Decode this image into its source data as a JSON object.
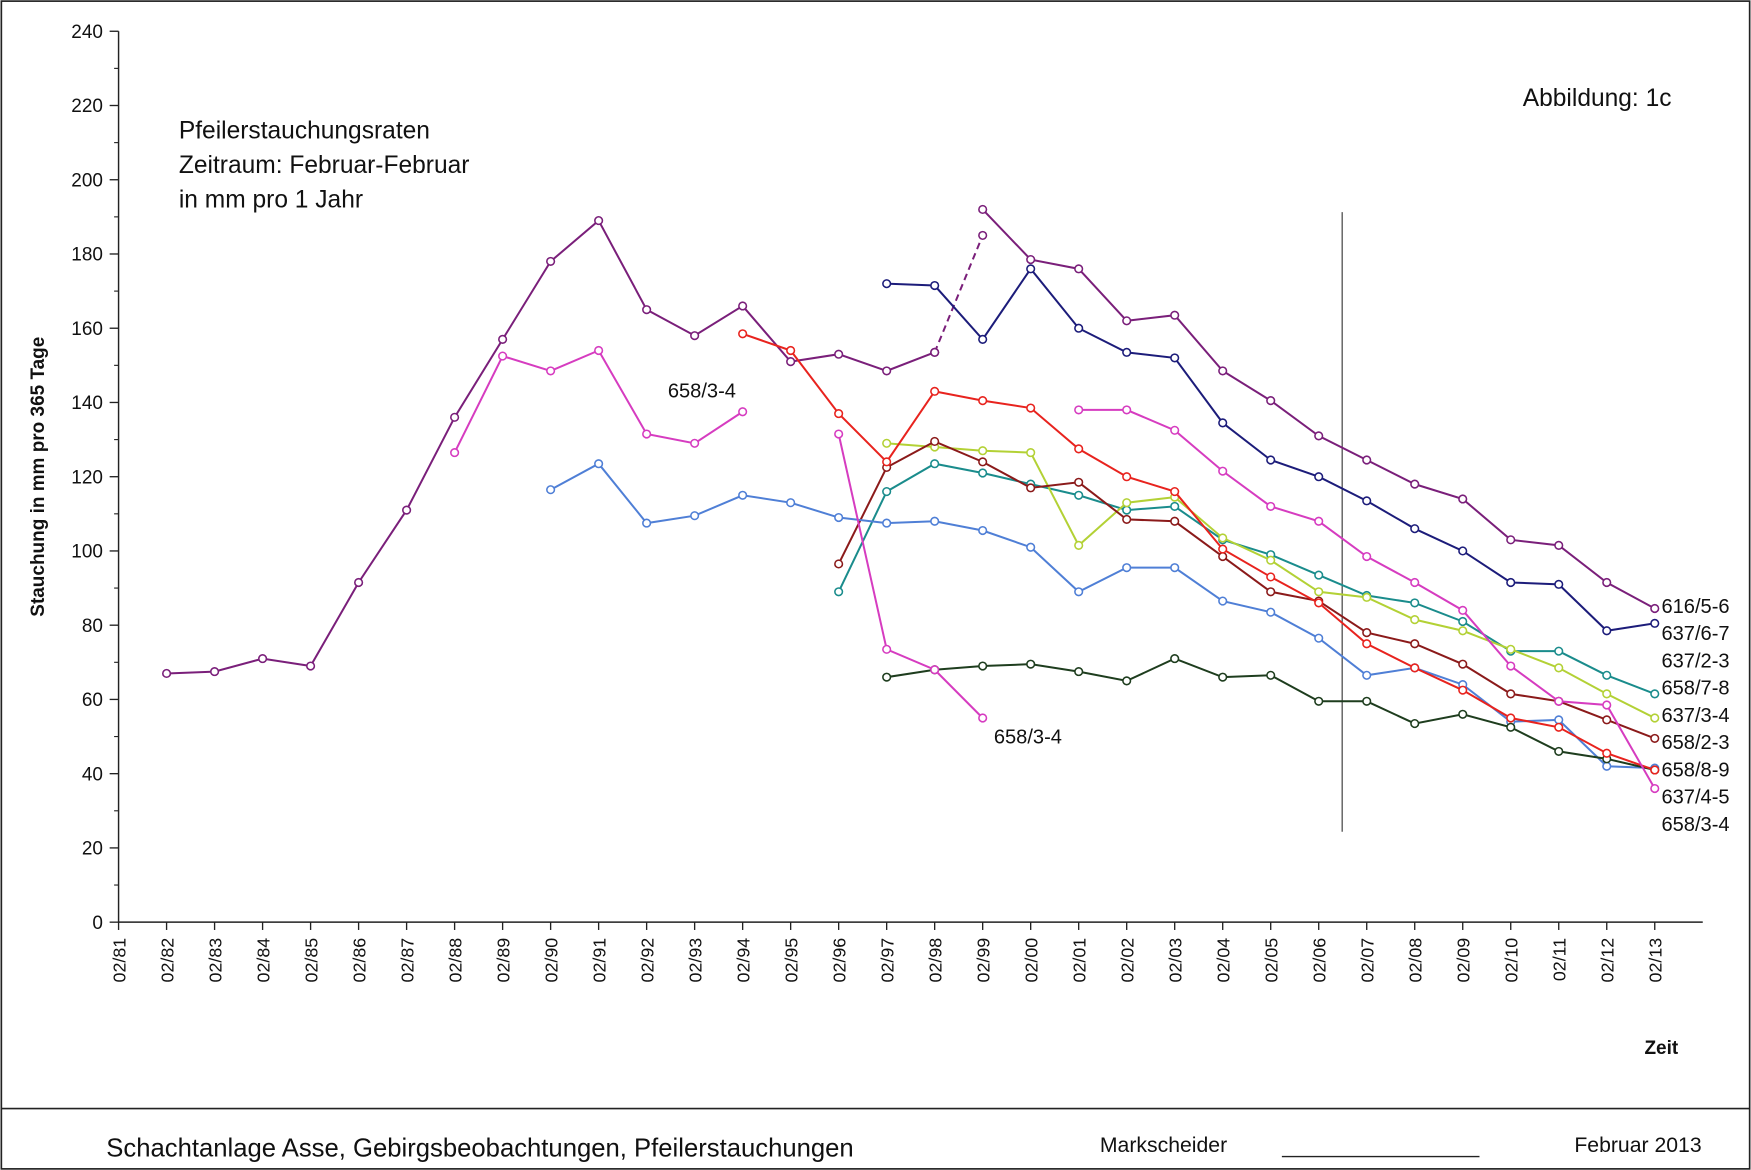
{
  "chart_data": {
    "type": "line",
    "title": [
      "Pfeilerstauchungsraten",
      "Zeitraum: Februar-Februar",
      "in mm pro 1 Jahr"
    ],
    "figure_label": "Abbildung:  1c",
    "ylabel": "Stauchung in mm pro 365 Tage",
    "xlabel": "Zeit",
    "footer": {
      "caption": "Schachtanlage Asse, Gebirgsbeobachtungen, Pfeilerstauchungen",
      "signer": "Markscheider",
      "date": "Februar 2013"
    },
    "categories": [
      "02/81",
      "02/82",
      "02/83",
      "02/84",
      "02/85",
      "02/86",
      "02/87",
      "02/88",
      "02/89",
      "02/90",
      "02/91",
      "02/92",
      "02/93",
      "02/94",
      "02/95",
      "02/96",
      "02/97",
      "02/98",
      "02/99",
      "02/00",
      "02/01",
      "02/02",
      "02/03",
      "02/04",
      "02/05",
      "02/06",
      "02/07",
      "02/08",
      "02/09",
      "02/10",
      "02/11",
      "02/12",
      "02/13"
    ],
    "ylim": [
      0,
      240
    ],
    "yticks": [
      0,
      20,
      40,
      60,
      80,
      100,
      120,
      140,
      160,
      180,
      200,
      220,
      240
    ],
    "series": [
      {
        "color": "#7a1f7a",
        "values": [
          null,
          67,
          67.5,
          71,
          69,
          91.5,
          111,
          136,
          157,
          178,
          189,
          165,
          158,
          166,
          151,
          153,
          148.5,
          153.5,
          null,
          null,
          null,
          null,
          null,
          null,
          null,
          null,
          null,
          null,
          null,
          null,
          null,
          null,
          null
        ]
      },
      {
        "color": "#7a1f7a",
        "dashed": true,
        "values": [
          null,
          null,
          null,
          null,
          null,
          null,
          null,
          null,
          null,
          null,
          null,
          null,
          null,
          null,
          null,
          null,
          null,
          153.5,
          185,
          null,
          null,
          null,
          null,
          null,
          null,
          null,
          null,
          null,
          null,
          null,
          null,
          null,
          null
        ]
      },
      {
        "name": "616/5-6",
        "color": "#7a1f7a",
        "values": [
          null,
          null,
          null,
          null,
          null,
          null,
          null,
          null,
          null,
          null,
          null,
          null,
          null,
          null,
          null,
          null,
          null,
          null,
          192,
          178.5,
          176,
          162,
          163.5,
          148.5,
          140.5,
          131,
          124.5,
          118,
          114,
          103,
          101.5,
          91.5,
          84.5
        ]
      },
      {
        "name": "637/6-7",
        "color": "#1c1c7a",
        "values": [
          null,
          null,
          null,
          null,
          null,
          null,
          null,
          null,
          null,
          null,
          null,
          null,
          null,
          null,
          null,
          null,
          172,
          171.5,
          157,
          176,
          160,
          153.5,
          152,
          134.5,
          124.5,
          120,
          113.5,
          106,
          100,
          91.5,
          91,
          78.5,
          80.5
        ]
      },
      {
        "name": "637/2-3",
        "color": "#1a8c8c",
        "values": [
          null,
          null,
          null,
          null,
          null,
          null,
          null,
          null,
          null,
          null,
          null,
          null,
          null,
          null,
          null,
          89,
          116,
          123.5,
          121,
          118,
          115,
          111,
          112,
          103,
          99,
          93.5,
          88,
          86,
          81,
          73,
          73,
          66.5,
          61.5
        ]
      },
      {
        "name": "658/7-8",
        "color": "#b3d135",
        "values": [
          null,
          null,
          null,
          null,
          null,
          null,
          null,
          null,
          null,
          null,
          null,
          null,
          null,
          null,
          null,
          null,
          129,
          128,
          127,
          126.5,
          101.5,
          113,
          114.5,
          103.5,
          97.5,
          89,
          87.5,
          81.5,
          78.5,
          73.5,
          68.5,
          61.5,
          55
        ]
      },
      {
        "name": "637/3-4",
        "color": "#8b1a1a",
        "values": [
          null,
          null,
          null,
          null,
          null,
          null,
          null,
          null,
          null,
          null,
          null,
          null,
          null,
          null,
          null,
          96.5,
          122.5,
          129.5,
          124,
          117,
          118.5,
          108.5,
          108,
          98.5,
          89,
          86.5,
          78,
          75,
          69.5,
          61.5,
          59.5,
          54.5,
          49.5
        ]
      },
      {
        "name": "658/2-3",
        "color": "#4f7fd6",
        "values": [
          null,
          null,
          null,
          null,
          null,
          null,
          null,
          null,
          null,
          116.5,
          123.5,
          107.5,
          109.5,
          115,
          113,
          109,
          107.5,
          108,
          105.5,
          101,
          89,
          95.5,
          95.5,
          86.5,
          83.5,
          76.5,
          66.5,
          68.5,
          64,
          54,
          54.5,
          42,
          41.5
        ]
      },
      {
        "name": "658/8-9",
        "color": "#1e3d1e",
        "values": [
          null,
          null,
          null,
          null,
          null,
          null,
          null,
          null,
          null,
          null,
          null,
          null,
          null,
          null,
          null,
          null,
          66,
          68,
          69,
          69.5,
          67.5,
          65,
          71,
          66,
          66.5,
          59.5,
          59.5,
          53.5,
          56,
          52.5,
          46,
          44,
          41
        ]
      },
      {
        "name": "637/4-5",
        "color": "#e8231e",
        "values": [
          null,
          null,
          null,
          null,
          null,
          null,
          null,
          null,
          null,
          null,
          null,
          null,
          null,
          158.5,
          154,
          137,
          124,
          143,
          140.5,
          138.5,
          127.5,
          120,
          116,
          100.5,
          93,
          86,
          75,
          68.5,
          62.5,
          55,
          52.5,
          45.5,
          41
        ]
      },
      {
        "name": "658/3-4",
        "color": "#d63cc0",
        "values": [
          null,
          null,
          null,
          null,
          null,
          null,
          null,
          126.5,
          152.5,
          148.5,
          154,
          131.5,
          129,
          137.5,
          null,
          131.5,
          73.5,
          68,
          55,
          null,
          138,
          138,
          132.5,
          121.5,
          112,
          108,
          98.5,
          91.5,
          84,
          69,
          59.5,
          58.5,
          36
        ]
      }
    ],
    "annotations": [
      {
        "text": "658/3-4",
        "color": "#d63cc0"
      },
      {
        "text": "658/3-4",
        "color": "#d63cc0"
      }
    ]
  }
}
